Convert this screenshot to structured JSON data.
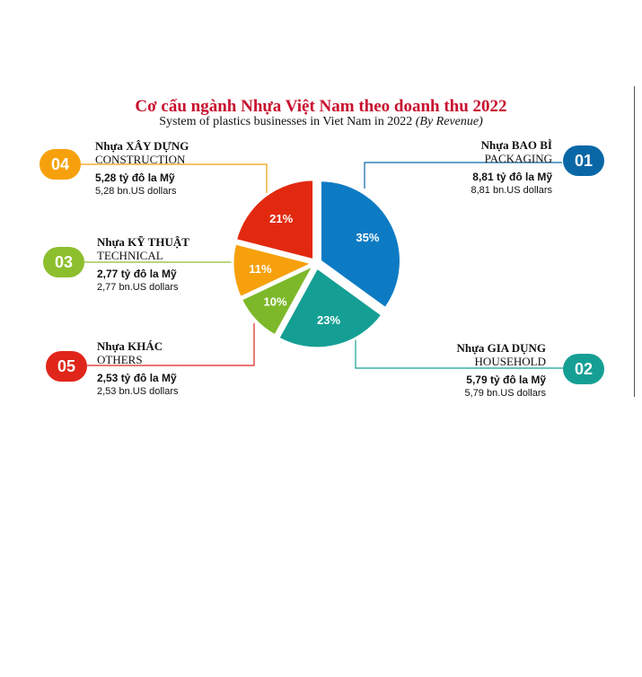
{
  "title": "Cơ cấu ngành Nhựa Việt Nam theo doanh thu 2022",
  "subtitle": "System of plastics businesses in Viet Nam in 2022",
  "subtitle_note": "(By Revenue)",
  "segments": [
    {
      "num": "01",
      "vn": "Nhựa BAO BÌ",
      "en": "PACKAGING",
      "value_vn": "8,81 tỷ đô la Mỹ",
      "value_en": "8,81 bn.US dollars",
      "pct_label": "35%",
      "color": "#0d7bc4",
      "badge_color": "#0a67a6"
    },
    {
      "num": "02",
      "vn": "Nhựa GIA DỤNG",
      "en": "HOUSEHOLD",
      "value_vn": "5,79 tỷ đô la Mỹ",
      "value_en": "5,79  bn.US dollars",
      "pct_label": "23%",
      "color": "#159f94",
      "badge_color": "#159f94"
    },
    {
      "num": "05",
      "vn": "Nhựa KHÁC",
      "en": "OTHERS",
      "value_vn": "2,53 tỷ đô la Mỹ",
      "value_en": "2,53 bn.US dollars",
      "pct_label": "10%",
      "color": "#7db82a",
      "badge_color": "#e0261b"
    },
    {
      "num": "03",
      "vn": "Nhựa KỸ THUẬT",
      "en": "TECHNICAL",
      "value_vn": "2,77 tỷ đô la Mỹ",
      "value_en": "2,77  bn.US dollars",
      "pct_label": "11%",
      "color": "#f6a10c",
      "badge_color": "#8cbf2e"
    },
    {
      "num": "04",
      "vn": "Nhựa XÂY DỰNG",
      "en": "CONSTRUCTION",
      "value_vn": "5,28 tỷ đô la Mỹ",
      "value_en": "5,28 bn.US dollars",
      "pct_label": "21%",
      "color": "#e2290f",
      "badge_color": "#f6a10c"
    }
  ],
  "chart_data": {
    "type": "pie",
    "title": "Cơ cấu ngành Nhựa Việt Nam theo doanh thu 2022",
    "subtitle": "System of plastics businesses in Viet Nam in 2022 (By Revenue)",
    "categories": [
      "PACKAGING",
      "HOUSEHOLD",
      "OTHERS",
      "TECHNICAL",
      "CONSTRUCTION"
    ],
    "values": [
      35,
      23,
      10,
      11,
      21
    ],
    "revenue_bn_usd": [
      8.81,
      5.79,
      2.53,
      2.77,
      5.28
    ]
  }
}
